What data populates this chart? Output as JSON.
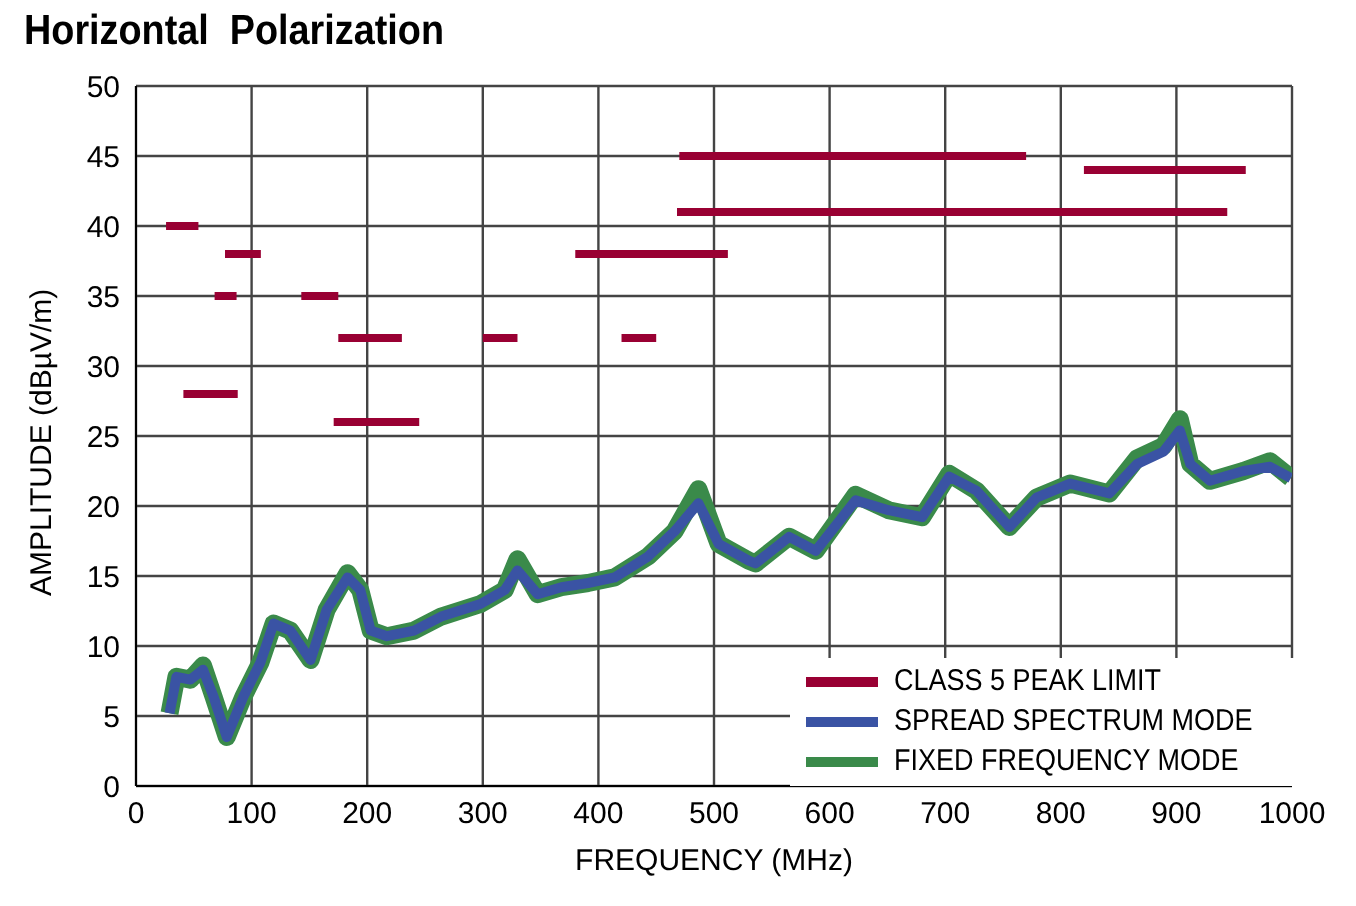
{
  "chart_data": {
    "type": "line",
    "title": "Horizontal  Polarization",
    "xlabel": "FREQUENCY (MHz)",
    "ylabel": "AMPLITUDE (dBµV/m)",
    "xlim": [
      0,
      1000
    ],
    "xticks": [
      0,
      100,
      200,
      300,
      400,
      500,
      600,
      700,
      800,
      900,
      1000
    ],
    "ylim": [
      0,
      50
    ],
    "yticks": [
      0,
      5,
      10,
      15,
      20,
      25,
      30,
      35,
      40,
      45,
      50
    ],
    "grid": true,
    "legend": "bottom right",
    "series": [
      {
        "name": "CLASS 5 PEAK LIMIT",
        "color": "#990033",
        "x": [
          26,
          54,
          null,
          77,
          108,
          null,
          68,
          87,
          null,
          143,
          175,
          null,
          175,
          230,
          null,
          300,
          330,
          null,
          420,
          450,
          null,
          41,
          88,
          null,
          171,
          245,
          null,
          380,
          512,
          null,
          470,
          770,
          null,
          468,
          944,
          null,
          820,
          960
        ],
        "values": [
          40,
          40,
          null,
          38,
          38,
          null,
          35,
          35,
          null,
          35,
          35,
          null,
          32,
          32,
          null,
          32,
          32,
          null,
          32,
          32,
          null,
          28,
          28,
          null,
          26,
          26,
          null,
          38,
          38,
          null,
          45,
          45,
          null,
          41,
          41,
          null,
          44,
          44
        ]
      },
      {
        "name": "FIXED FREQUENCY MODE",
        "color": "#3a8a4a",
        "x": [
          29,
          35,
          47,
          58,
          67,
          78.5,
          93,
          107.5,
          119,
          133.5,
          151,
          165,
          183,
          194,
          203,
          217,
          240.5,
          264,
          298,
          319,
          330,
          347.5,
          368,
          391,
          414,
          443,
          466,
          486.5,
          504,
          530,
          536,
          565,
          588,
          622.5,
          651,
          680,
          703.5,
          727,
          755.5,
          779,
          808,
          842,
          866,
          889,
          903,
          912,
          929,
          958,
          981,
          999
        ],
        "values": [
          5.2,
          7.8,
          7.6,
          8.6,
          6.4,
          3.5,
          6.4,
          8.8,
          11.6,
          11.1,
          9.0,
          12.6,
          15.2,
          14.0,
          11.1,
          10.7,
          11.1,
          12.1,
          13.0,
          14.0,
          16.2,
          13.7,
          14.2,
          14.5,
          14.9,
          16.4,
          18.2,
          21.2,
          17.3,
          16.1,
          15.9,
          17.8,
          16.8,
          20.8,
          19.7,
          19.2,
          22.3,
          21.1,
          18.5,
          20.6,
          21.6,
          20.9,
          23.4,
          24.3,
          26.2,
          23.0,
          21.8,
          22.5,
          23.2,
          22.0
        ]
      },
      {
        "name": "SPREAD SPECTRUM MODE",
        "color": "#3a53a4",
        "x": [
          29,
          35,
          47,
          58,
          67,
          78.5,
          93,
          107.5,
          119,
          133.5,
          151,
          165,
          183,
          194,
          203,
          217,
          240.5,
          264,
          298,
          319,
          330,
          347.5,
          368,
          391,
          414,
          443,
          466,
          486.5,
          504,
          530,
          536,
          565,
          588,
          622.5,
          651,
          680,
          703.5,
          727,
          755.5,
          779,
          808,
          842,
          866,
          889,
          903,
          912,
          929,
          958,
          981,
          999
        ],
        "values": [
          5.2,
          7.8,
          7.6,
          8.3,
          6.4,
          3.5,
          6.4,
          8.8,
          11.6,
          11.1,
          9.0,
          12.6,
          14.9,
          14.0,
          11.1,
          10.7,
          11.1,
          12.1,
          13.0,
          14.0,
          15.4,
          13.7,
          14.2,
          14.5,
          14.9,
          16.4,
          18.2,
          20.2,
          17.3,
          16.1,
          15.9,
          17.8,
          16.8,
          20.4,
          19.7,
          19.2,
          22.1,
          21.1,
          18.5,
          20.6,
          21.6,
          20.9,
          23.0,
          23.9,
          25.4,
          23.0,
          21.8,
          22.5,
          22.8,
          22.0
        ]
      }
    ]
  }
}
